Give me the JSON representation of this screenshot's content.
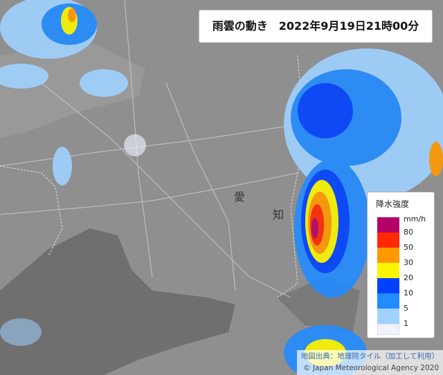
{
  "header": {
    "title": "雨雲の動き　2022年9月19日21時00分"
  },
  "map": {
    "labels": [
      "愛",
      "知"
    ]
  },
  "legend": {
    "title": "降水強度",
    "unit": "mm/h",
    "levels": [
      "80",
      "50",
      "30",
      "20",
      "10",
      "5",
      "1"
    ]
  },
  "attribution": {
    "source": "地図出典：地理院タイル（加工して利用）",
    "copyright": "© Japan Meteorological Agency 2020"
  }
}
